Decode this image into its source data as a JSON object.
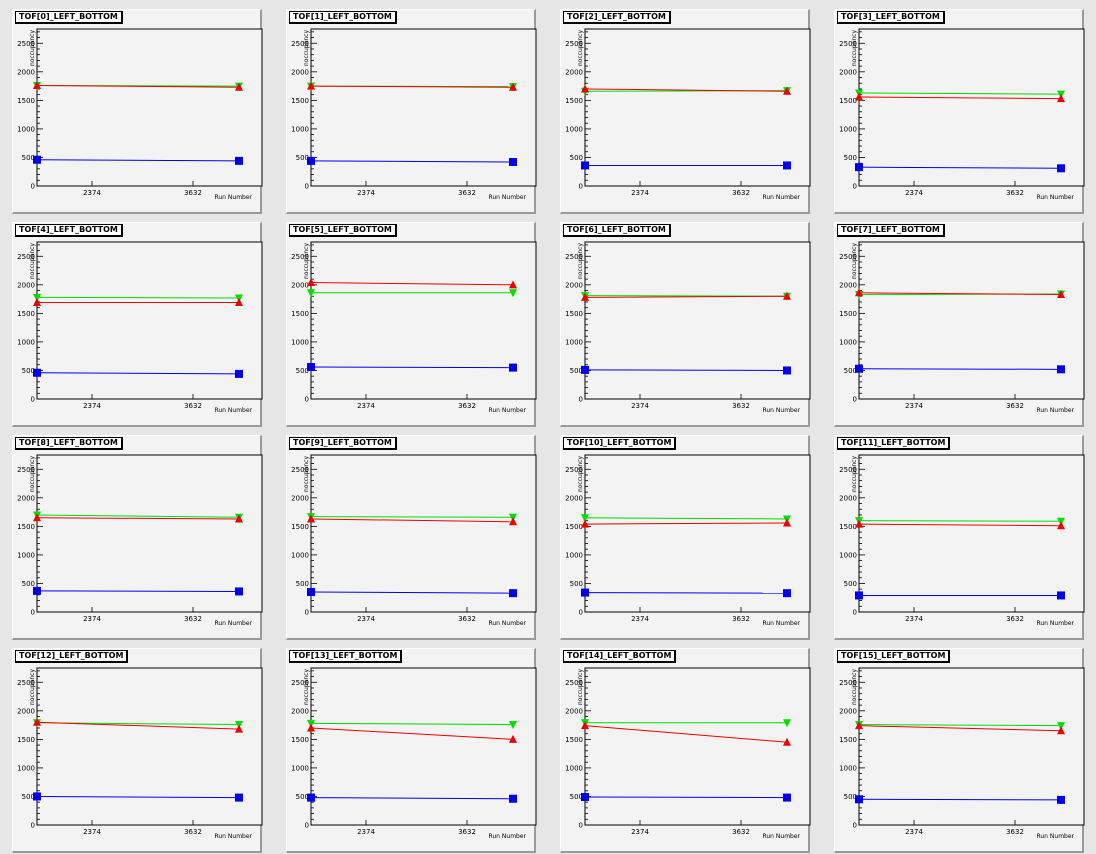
{
  "common": {
    "x_ticks": [
      "2374",
      "3632"
    ],
    "y_ticks": [
      "0",
      "500",
      "1000",
      "1500",
      "2000",
      "2500"
    ],
    "x_label": "Run Number",
    "y_label": "noccupancy"
  },
  "colors": {
    "green": "#00dd00",
    "red": "#ee0000",
    "blue": "#0000ee"
  },
  "chart_data": [
    {
      "type": "line",
      "title": "TOF[0]_LEFT_BOTTOM",
      "ylim": [
        0,
        2750
      ],
      "series": [
        {
          "color": "green",
          "values": [
            1760,
            1750
          ]
        },
        {
          "color": "red",
          "values": [
            1760,
            1730
          ]
        },
        {
          "color": "blue",
          "values": [
            460,
            440
          ]
        }
      ]
    },
    {
      "type": "line",
      "title": "TOF[1]_LEFT_BOTTOM",
      "ylim": [
        0,
        2750
      ],
      "series": [
        {
          "color": "green",
          "values": [
            1750,
            1740
          ]
        },
        {
          "color": "red",
          "values": [
            1750,
            1730
          ]
        },
        {
          "color": "blue",
          "values": [
            440,
            420
          ]
        }
      ]
    },
    {
      "type": "line",
      "title": "TOF[2]_LEFT_BOTTOM",
      "ylim": [
        0,
        2750
      ],
      "series": [
        {
          "color": "green",
          "values": [
            1660,
            1670
          ]
        },
        {
          "color": "red",
          "values": [
            1700,
            1660
          ]
        },
        {
          "color": "blue",
          "values": [
            360,
            360
          ]
        }
      ]
    },
    {
      "type": "line",
      "title": "TOF[3]_LEFT_BOTTOM",
      "ylim": [
        0,
        2750
      ],
      "series": [
        {
          "color": "green",
          "values": [
            1630,
            1610
          ]
        },
        {
          "color": "red",
          "values": [
            1560,
            1530
          ]
        },
        {
          "color": "blue",
          "values": [
            330,
            310
          ]
        }
      ]
    },
    {
      "type": "line",
      "title": "TOF[4]_LEFT_BOTTOM",
      "ylim": [
        0,
        2750
      ],
      "series": [
        {
          "color": "green",
          "values": [
            1780,
            1770
          ]
        },
        {
          "color": "red",
          "values": [
            1690,
            1690
          ]
        },
        {
          "color": "blue",
          "values": [
            460,
            440
          ]
        }
      ]
    },
    {
      "type": "line",
      "title": "TOF[5]_LEFT_BOTTOM",
      "ylim": [
        0,
        2750
      ],
      "series": [
        {
          "color": "green",
          "values": [
            1860,
            1860
          ]
        },
        {
          "color": "red",
          "values": [
            2040,
            2000
          ]
        },
        {
          "color": "blue",
          "values": [
            560,
            550
          ]
        }
      ]
    },
    {
      "type": "line",
      "title": "TOF[6]_LEFT_BOTTOM",
      "ylim": [
        0,
        2750
      ],
      "series": [
        {
          "color": "green",
          "values": [
            1810,
            1800
          ]
        },
        {
          "color": "red",
          "values": [
            1780,
            1800
          ]
        },
        {
          "color": "blue",
          "values": [
            510,
            500
          ]
        }
      ]
    },
    {
      "type": "line",
      "title": "TOF[7]_LEFT_BOTTOM",
      "ylim": [
        0,
        2750
      ],
      "series": [
        {
          "color": "green",
          "values": [
            1830,
            1840
          ]
        },
        {
          "color": "red",
          "values": [
            1860,
            1830
          ]
        },
        {
          "color": "blue",
          "values": [
            530,
            520
          ]
        }
      ]
    },
    {
      "type": "line",
      "title": "TOF[8]_LEFT_BOTTOM",
      "ylim": [
        0,
        2750
      ],
      "series": [
        {
          "color": "green",
          "values": [
            1700,
            1660
          ]
        },
        {
          "color": "red",
          "values": [
            1650,
            1630
          ]
        },
        {
          "color": "blue",
          "values": [
            370,
            360
          ]
        }
      ]
    },
    {
      "type": "line",
      "title": "TOF[9]_LEFT_BOTTOM",
      "ylim": [
        0,
        2750
      ],
      "series": [
        {
          "color": "green",
          "values": [
            1670,
            1660
          ]
        },
        {
          "color": "red",
          "values": [
            1630,
            1580
          ]
        },
        {
          "color": "blue",
          "values": [
            350,
            330
          ]
        }
      ]
    },
    {
      "type": "line",
      "title": "TOF[10]_LEFT_BOTTOM",
      "ylim": [
        0,
        2750
      ],
      "series": [
        {
          "color": "green",
          "values": [
            1650,
            1630
          ]
        },
        {
          "color": "red",
          "values": [
            1540,
            1560
          ]
        },
        {
          "color": "blue",
          "values": [
            340,
            330
          ]
        }
      ]
    },
    {
      "type": "line",
      "title": "TOF[11]_LEFT_BOTTOM",
      "ylim": [
        0,
        2750
      ],
      "series": [
        {
          "color": "green",
          "values": [
            1600,
            1590
          ]
        },
        {
          "color": "red",
          "values": [
            1540,
            1510
          ]
        },
        {
          "color": "blue",
          "values": [
            290,
            290
          ]
        }
      ]
    },
    {
      "type": "line",
      "title": "TOF[12]_LEFT_BOTTOM",
      "ylim": [
        0,
        2750
      ],
      "series": [
        {
          "color": "green",
          "values": [
            1790,
            1760
          ]
        },
        {
          "color": "red",
          "values": [
            1800,
            1680
          ]
        },
        {
          "color": "blue",
          "values": [
            500,
            480
          ]
        }
      ]
    },
    {
      "type": "line",
      "title": "TOF[13]_LEFT_BOTTOM",
      "ylim": [
        0,
        2750
      ],
      "series": [
        {
          "color": "green",
          "values": [
            1780,
            1760
          ]
        },
        {
          "color": "red",
          "values": [
            1700,
            1500
          ]
        },
        {
          "color": "blue",
          "values": [
            480,
            460
          ]
        }
      ]
    },
    {
      "type": "line",
      "title": "TOF[14]_LEFT_BOTTOM",
      "ylim": [
        0,
        2750
      ],
      "series": [
        {
          "color": "green",
          "values": [
            1790,
            1790
          ]
        },
        {
          "color": "red",
          "values": [
            1740,
            1450
          ]
        },
        {
          "color": "blue",
          "values": [
            490,
            480
          ]
        }
      ]
    },
    {
      "type": "line",
      "title": "TOF[15]_LEFT_BOTTOM",
      "ylim": [
        0,
        2750
      ],
      "series": [
        {
          "color": "green",
          "values": [
            1760,
            1740
          ]
        },
        {
          "color": "red",
          "values": [
            1740,
            1650
          ]
        },
        {
          "color": "blue",
          "values": [
            450,
            440
          ]
        }
      ]
    }
  ]
}
